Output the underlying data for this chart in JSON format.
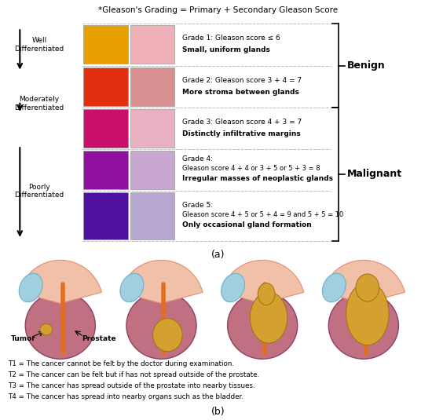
{
  "title": "*Gleason's Grading = Primary + Secondary Gleason Score",
  "grades": [
    {
      "grade_num": 1,
      "title_line1": "Grade 1: Gleason score ≤ 6",
      "title_line2": null,
      "desc": "Small, uniform glands",
      "color1": "#E8A000",
      "color2": "#F0B0B8"
    },
    {
      "grade_num": 2,
      "title_line1": "Grade 2: Gleason score 3 + 4 = 7",
      "title_line2": null,
      "desc": "More stroma between glands",
      "color1": "#E03010",
      "color2": "#D89090"
    },
    {
      "grade_num": 3,
      "title_line1": "Grade 3: Gleason score 4 + 3 = 7",
      "title_line2": null,
      "desc": "Distinctly infiltrative margins",
      "color1": "#C8106A",
      "color2": "#E8B0C0"
    },
    {
      "grade_num": 4,
      "title_line1": "Grade 4:",
      "title_line2": "Gleason score 4 + 4 or 3 + 5 or 5 + 3 = 8",
      "desc": "Irregular masses of neoplastic glands",
      "color1": "#9010A0",
      "color2": "#C8A8D0"
    },
    {
      "grade_num": 5,
      "title_line1": "Grade 5:",
      "title_line2": "Gleason score 4 + 5 or 5 + 4 = 9 and 5 + 5 = 10",
      "desc": "Only occasional gland formation",
      "color1": "#5010A0",
      "color2": "#B8A8D0"
    }
  ],
  "benign_label": "Benign",
  "malignant_label": "Malignant",
  "caption_a": "(a)",
  "caption_b": "(b)",
  "t_labels": [
    "T1",
    "T2",
    "T3",
    "T4"
  ],
  "t_descriptions": [
    "T1 = The cancer cannot be felt by the doctor during examination.",
    "T2 = The cancer can be felt but if has not spread outside of the prostate.",
    "T3 = The cancer has spread outside of the prostate into nearby tissues.",
    "T4 = The cancer has spread into nearby organs such as the bladder."
  ],
  "tumor_label": "Tumor",
  "prostate_label": "Prostate",
  "bg_color": "#FFFFFF",
  "prostate_fill": "#C07080",
  "prostate_edge": "#904060",
  "bladder_fill": "#F0C0A8",
  "bladder_edge": "#E09070",
  "seminal_fill": "#A0D0E0",
  "seminal_edge": "#70B0C8",
  "urethra_color": "#E07020",
  "tumor_fill": "#D4A030",
  "tumor_edge": "#A07010"
}
